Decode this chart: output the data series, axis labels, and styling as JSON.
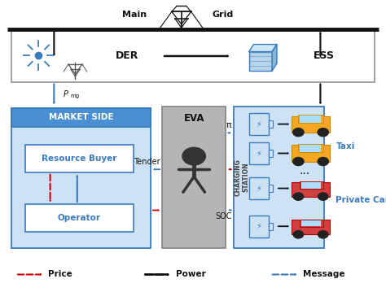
{
  "bg_color": "#ffffff",
  "main_grid_text": [
    "Main",
    "Grid"
  ],
  "der_text": "DER",
  "ess_text": "ESS",
  "market_side_text": "MARKET SIDE",
  "eva_text": "EVA",
  "charging_station_text": "CHARGING\nSTATION",
  "resource_buyer_text": "Resource Buyer",
  "operator_text": "Operator",
  "pmrg_text": "P",
  "pmrg_sub": "mg",
  "pi_text": "π",
  "tender_text": "Tender",
  "soc_text": "SOC",
  "taxi_text": "Taxi",
  "private_car_text": "Private Car",
  "dots_text": "...",
  "legend_price": "Price",
  "legend_power": "Power",
  "legend_message": "Message",
  "blue": "#3a7bbf",
  "light_blue_bg": "#cde2f5",
  "gray_eva": "#aaaaaa",
  "red": "#cc0000",
  "black": "#111111",
  "border_blue": "#3a7bbf",
  "header_blue_bg": "#4a8fd4",
  "cs_icon_blue": "#3a7bbf"
}
